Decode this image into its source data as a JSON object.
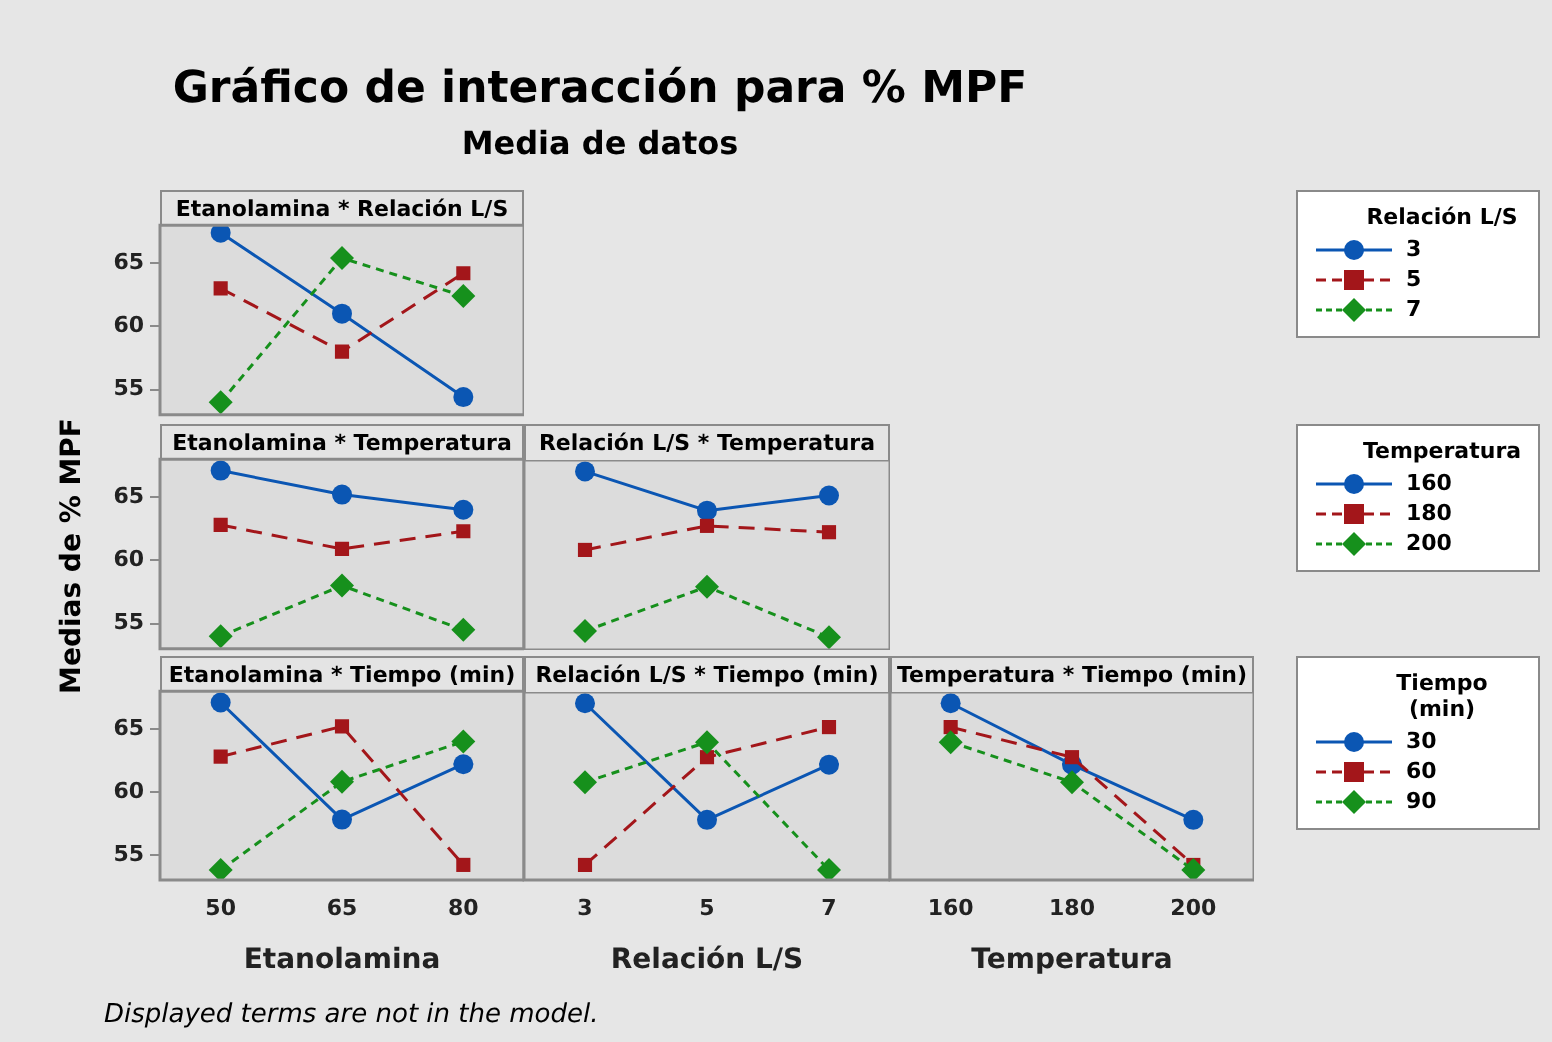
{
  "chart_data": [
    {
      "type": "other",
      "title": "Gráfico de interacción para % MPF",
      "subtitle": "Media de datos",
      "annotations": [
        "Displayed terms are not in the model."
      ]
    },
    {
      "type": "line",
      "title": "Etanolamina * Relación L/S",
      "categories": [
        "50",
        "65",
        "80"
      ],
      "ylim": [
        53,
        68
      ],
      "yticks": [
        55,
        60,
        65
      ],
      "tick_labels": "y",
      "legend": "right",
      "legend_title": "Relación L/S",
      "series": [
        {
          "name": "3",
          "color": "#0b56b3",
          "marker": "circle",
          "line_style": "solid",
          "values": [
            67.4,
            61.0,
            54.4
          ]
        },
        {
          "name": "5",
          "color": "#a3161a",
          "marker": "square",
          "line_style": "dashed",
          "values": [
            63.0,
            58.0,
            64.2
          ]
        },
        {
          "name": "7",
          "color": "#16901c",
          "marker": "diamond",
          "line_style": "dashed",
          "values": [
            54.0,
            65.4,
            62.4
          ]
        }
      ]
    },
    {
      "type": "line",
      "title": "Etanolamina * Temperatura",
      "ylabel": "Medias de % MPF",
      "categories": [
        "50",
        "65",
        "80"
      ],
      "ylim": [
        53,
        68
      ],
      "yticks": [
        55,
        60,
        65
      ],
      "tick_labels": "y",
      "series": [
        {
          "color": "#0b56b3",
          "marker": "circle",
          "line_style": "solid",
          "values": [
            67.1,
            65.2,
            64.0
          ]
        },
        {
          "color": "#a3161a",
          "marker": "square",
          "line_style": "dashed",
          "values": [
            62.8,
            60.9,
            62.3
          ]
        },
        {
          "color": "#16901c",
          "marker": "diamond",
          "line_style": "dashed",
          "values": [
            54.0,
            58.0,
            54.5
          ]
        }
      ]
    },
    {
      "type": "line",
      "title": "Relación L/S * Temperatura",
      "categories": [
        "3",
        "5",
        "7"
      ],
      "ylim": [
        53,
        68
      ],
      "tick_labels": false,
      "legend": "right",
      "legend_title": "Temperatura",
      "series": [
        {
          "name": "160",
          "color": "#0b56b3",
          "marker": "circle",
          "line_style": "solid",
          "values": [
            67.1,
            64.0,
            65.2
          ]
        },
        {
          "name": "180",
          "color": "#a3161a",
          "marker": "square",
          "line_style": "dashed",
          "values": [
            60.9,
            62.8,
            62.3
          ]
        },
        {
          "name": "200",
          "color": "#16901c",
          "marker": "diamond",
          "line_style": "dashed",
          "values": [
            54.5,
            58.0,
            54.0
          ]
        }
      ]
    },
    {
      "type": "line",
      "title": "Etanolamina * Tiempo (min)",
      "xlabel": "Etanolamina",
      "categories": [
        "50",
        "65",
        "80"
      ],
      "ylim": [
        53,
        68
      ],
      "yticks": [
        55,
        60,
        65
      ],
      "series": [
        {
          "color": "#0b56b3",
          "marker": "circle",
          "line_style": "solid",
          "values": [
            67.1,
            57.8,
            62.2
          ]
        },
        {
          "color": "#a3161a",
          "marker": "square",
          "line_style": "dashed",
          "values": [
            62.8,
            65.2,
            54.2
          ]
        },
        {
          "color": "#16901c",
          "marker": "diamond",
          "line_style": "dashed",
          "values": [
            53.8,
            60.8,
            64.0
          ]
        }
      ]
    },
    {
      "type": "line",
      "title": "Relación L/S * Tiempo (min)",
      "xlabel": "Relación L/S",
      "categories": [
        "3",
        "5",
        "7"
      ],
      "ylim": [
        53,
        68
      ],
      "tick_labels": "x",
      "series": [
        {
          "color": "#0b56b3",
          "marker": "circle",
          "line_style": "solid",
          "values": [
            67.1,
            57.8,
            62.2
          ]
        },
        {
          "color": "#a3161a",
          "marker": "square",
          "line_style": "dashed",
          "values": [
            54.2,
            62.8,
            65.2
          ]
        },
        {
          "color": "#16901c",
          "marker": "diamond",
          "line_style": "dashed",
          "values": [
            60.8,
            64.0,
            53.8
          ]
        }
      ]
    },
    {
      "type": "line",
      "title": "Temperatura * Tiempo (min)",
      "xlabel": "Temperatura",
      "categories": [
        "160",
        "180",
        "200"
      ],
      "ylim": [
        53,
        68
      ],
      "tick_labels": "x",
      "legend": "right",
      "legend_title": "Tiempo (min)",
      "series": [
        {
          "name": "30",
          "color": "#0b56b3",
          "marker": "circle",
          "line_style": "solid",
          "values": [
            67.1,
            62.2,
            57.8
          ]
        },
        {
          "name": "60",
          "color": "#a3161a",
          "marker": "square",
          "line_style": "dashed",
          "values": [
            65.2,
            62.8,
            54.2
          ]
        },
        {
          "name": "90",
          "color": "#16901c",
          "marker": "diamond",
          "line_style": "dashed",
          "values": [
            64.0,
            60.8,
            53.8
          ]
        }
      ]
    }
  ]
}
